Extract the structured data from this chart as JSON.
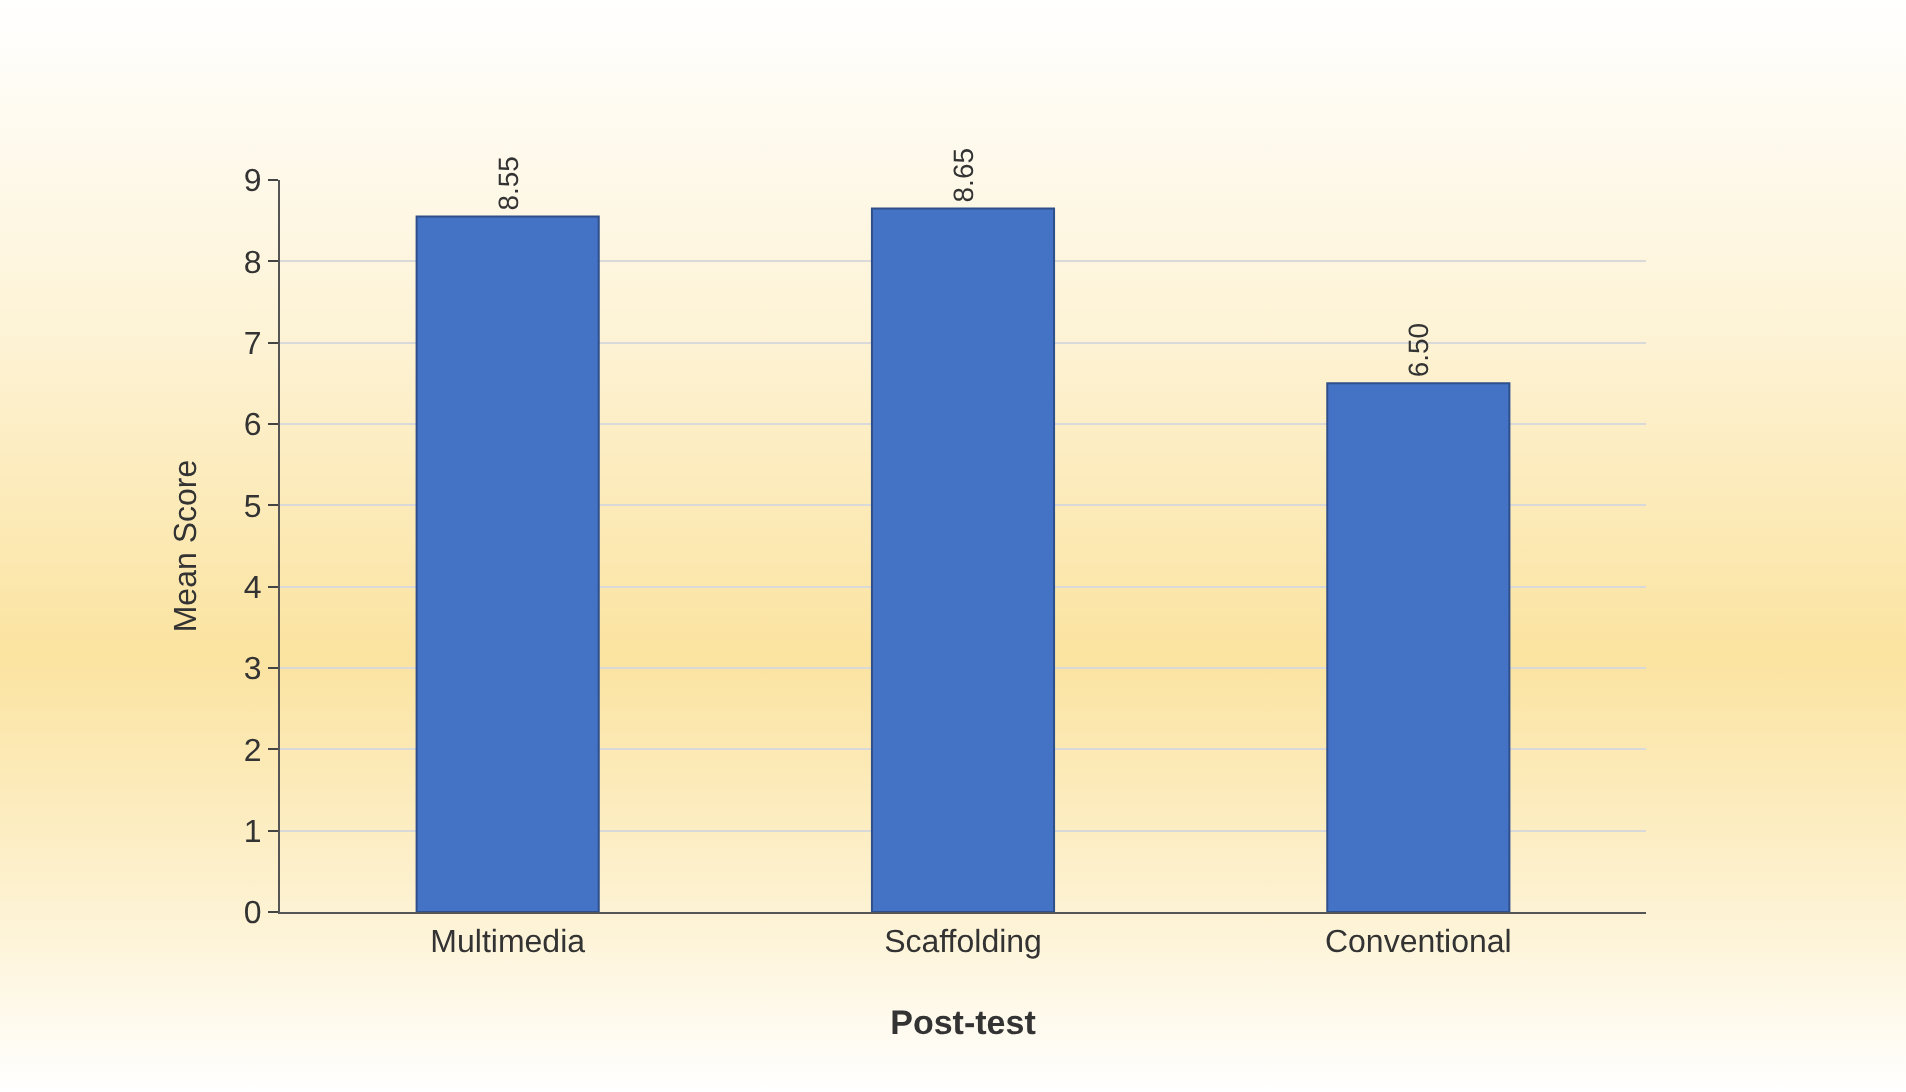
{
  "chart_data": {
    "type": "bar",
    "xlabel": "Post-test",
    "ylabel": "Mean Score",
    "categories": [
      "Multimedia",
      "Scaffolding",
      "Conventional"
    ],
    "values": [
      8.55,
      8.65,
      6.5
    ],
    "value_labels": [
      "8.55",
      "8.65",
      "6.50"
    ],
    "color": "#4472c4",
    "ylim": [
      0,
      9
    ],
    "yticks": [
      0,
      1,
      2,
      3,
      4,
      5,
      6,
      7,
      8,
      9
    ],
    "grid": true
  }
}
